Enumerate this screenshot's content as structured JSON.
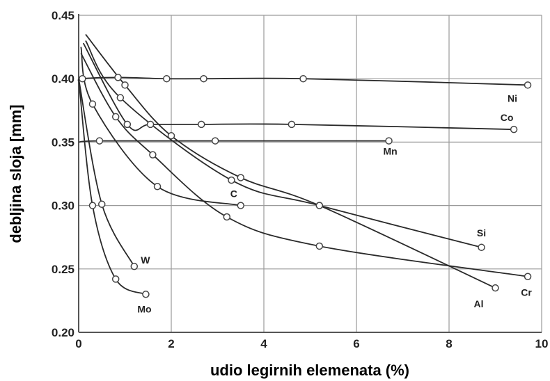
{
  "chart_data": {
    "type": "line",
    "xlabel": "udio legirnih elemenata (%)",
    "ylabel": "debljina sloja [mm]",
    "xlim": [
      0,
      10
    ],
    "ylim": [
      0.2,
      0.45
    ],
    "x_ticks": [
      "0",
      "2",
      "4",
      "6",
      "8",
      "10"
    ],
    "y_ticks": [
      "0.45",
      "0.40",
      "0.35",
      "0.30",
      "0.25",
      "0.20"
    ],
    "grid": true,
    "series": [
      {
        "name": "Ni",
        "x": [
          0,
          0.08,
          0.85,
          1.9,
          2.7,
          4.85,
          9.7
        ],
        "y": [
          0.398,
          0.4,
          0.401,
          0.4,
          0.4,
          0.4,
          0.395
        ]
      },
      {
        "name": "Co",
        "x": [
          0.1,
          1.05,
          1.55,
          2.65,
          4.6,
          9.4
        ],
        "y": [
          0.428,
          0.364,
          0.364,
          0.364,
          0.364,
          0.36
        ]
      },
      {
        "name": "Mn",
        "x": [
          0,
          0.45,
          2.95,
          6.7
        ],
        "y": [
          0.35,
          0.351,
          0.351,
          0.351
        ]
      },
      {
        "name": "Si",
        "x": [
          0.15,
          0.9,
          3.3,
          5.2,
          8.7
        ],
        "y": [
          0.43,
          0.385,
          0.32,
          0.3,
          0.267
        ]
      },
      {
        "name": "Al",
        "x": [
          0.15,
          1.0,
          2.0,
          3.5,
          5.2,
          9.0
        ],
        "y": [
          0.435,
          0.395,
          0.355,
          0.322,
          0.3,
          0.235
        ]
      },
      {
        "name": "C",
        "x": [
          0.05,
          0.3,
          1.7,
          3.5
        ],
        "y": [
          0.425,
          0.38,
          0.315,
          0.3
        ]
      },
      {
        "name": "Cr",
        "x": [
          0.05,
          0.8,
          1.6,
          3.2,
          5.2,
          9.7
        ],
        "y": [
          0.42,
          0.37,
          0.34,
          0.291,
          0.268,
          0.244
        ]
      },
      {
        "name": "W",
        "x": [
          0,
          0.5,
          1.2
        ],
        "y": [
          0.4,
          0.301,
          0.252
        ]
      },
      {
        "name": "Mo",
        "x": [
          0,
          0.3,
          0.8,
          1.45
        ],
        "y": [
          0.4,
          0.3,
          0.242,
          0.23
        ]
      }
    ]
  }
}
